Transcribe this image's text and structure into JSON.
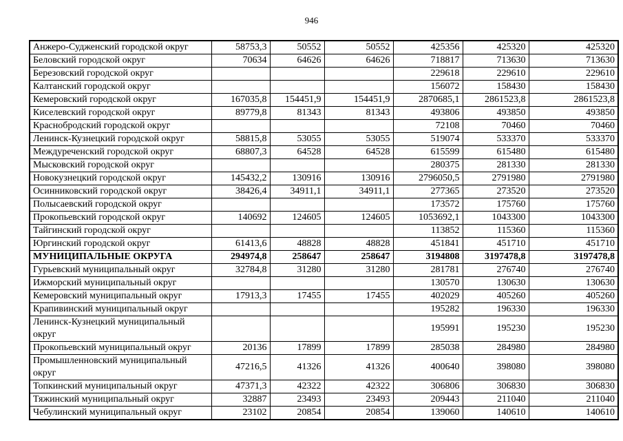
{
  "page": {
    "number": "946"
  },
  "table": {
    "rows": [
      {
        "label": "Анжеро-Судженский городской округ",
        "bold": false,
        "values": [
          "58753,3",
          "50552",
          "50552",
          "425356",
          "425320",
          "425320"
        ]
      },
      {
        "label": "Беловский городской округ",
        "bold": false,
        "values": [
          "70634",
          "64626",
          "64626",
          "718817",
          "713630",
          "713630"
        ]
      },
      {
        "label": "Березовский городской округ",
        "bold": false,
        "values": [
          "",
          "",
          "",
          "229618",
          "229610",
          "229610"
        ]
      },
      {
        "label": "Калтанский городской округ",
        "bold": false,
        "values": [
          "",
          "",
          "",
          "156072",
          "158430",
          "158430"
        ]
      },
      {
        "label": "Кемеровский городской округ",
        "bold": false,
        "values": [
          "167035,8",
          "154451,9",
          "154451,9",
          "2870685,1",
          "2861523,8",
          "2861523,8"
        ]
      },
      {
        "label": "Киселевский городской округ",
        "bold": false,
        "values": [
          "89779,8",
          "81343",
          "81343",
          "493806",
          "493850",
          "493850"
        ]
      },
      {
        "label": "Краснобродский городской округ",
        "bold": false,
        "values": [
          "",
          "",
          "",
          "72108",
          "70460",
          "70460"
        ]
      },
      {
        "label": "Ленинск-Кузнецкий городской округ",
        "bold": false,
        "values": [
          "58815,8",
          "53055",
          "53055",
          "519074",
          "533370",
          "533370"
        ]
      },
      {
        "label": "Междуреченский городской округ",
        "bold": false,
        "values": [
          "68807,3",
          "64528",
          "64528",
          "615599",
          "615480",
          "615480"
        ]
      },
      {
        "label": "Мысковский городской округ",
        "bold": false,
        "values": [
          "",
          "",
          "",
          "280375",
          "281330",
          "281330"
        ]
      },
      {
        "label": "Новокузнецкий городской округ",
        "bold": false,
        "values": [
          "145432,2",
          "130916",
          "130916",
          "2796050,5",
          "2791980",
          "2791980"
        ]
      },
      {
        "label": "Осинниковский городской округ",
        "bold": false,
        "values": [
          "38426,4",
          "34911,1",
          "34911,1",
          "277365",
          "273520",
          "273520"
        ]
      },
      {
        "label": "Полысаевский городской округ",
        "bold": false,
        "values": [
          "",
          "",
          "",
          "173572",
          "175760",
          "175760"
        ]
      },
      {
        "label": "Прокопьевский городской округ",
        "bold": false,
        "values": [
          "140692",
          "124605",
          "124605",
          "1053692,1",
          "1043300",
          "1043300"
        ]
      },
      {
        "label": "Тайгинский городской округ",
        "bold": false,
        "values": [
          "",
          "",
          "",
          "113852",
          "115360",
          "115360"
        ]
      },
      {
        "label": "Юргинский городской округ",
        "bold": false,
        "values": [
          "61413,6",
          "48828",
          "48828",
          "451841",
          "451710",
          "451710"
        ]
      },
      {
        "label": "МУНИЦИПАЛЬНЫЕ ОКРУГА",
        "bold": true,
        "values": [
          "294974,8",
          "258647",
          "258647",
          "3194808",
          "3197478,8",
          "3197478,8"
        ]
      },
      {
        "label": "Гурьевский муниципальный округ",
        "bold": false,
        "values": [
          "32784,8",
          "31280",
          "31280",
          "281781",
          "276740",
          "276740"
        ]
      },
      {
        "label": "Ижморский муниципальный округ",
        "bold": false,
        "values": [
          "",
          "",
          "",
          "130570",
          "130630",
          "130630"
        ]
      },
      {
        "label": "Кемеровский муниципальный округ",
        "bold": false,
        "values": [
          "17913,3",
          "17455",
          "17455",
          "402029",
          "405260",
          "405260"
        ]
      },
      {
        "label": "Крапивинский муниципальный округ",
        "bold": false,
        "values": [
          "",
          "",
          "",
          "195282",
          "196330",
          "196330"
        ]
      },
      {
        "label": "Ленинск-Кузнецкий муниципальный\nокруг",
        "bold": false,
        "values": [
          "",
          "",
          "",
          "195991",
          "195230",
          "195230"
        ]
      },
      {
        "label": "Прокопьевский муниципальный округ",
        "bold": false,
        "values": [
          "20136",
          "17899",
          "17899",
          "285038",
          "284980",
          "284980"
        ]
      },
      {
        "label": "Промышленновский муниципальный\nокруг",
        "bold": false,
        "values": [
          "47216,5",
          "41326",
          "41326",
          "400640",
          "398080",
          "398080"
        ]
      },
      {
        "label": "Топкинский муниципальный округ",
        "bold": false,
        "values": [
          "47371,3",
          "42322",
          "42322",
          "306806",
          "306830",
          "306830"
        ]
      },
      {
        "label": "Тяжинский муниципальный округ",
        "bold": false,
        "values": [
          "32887",
          "23493",
          "23493",
          "209443",
          "211040",
          "211040"
        ]
      },
      {
        "label": "Чебулинский муниципальный округ",
        "bold": false,
        "values": [
          "23102",
          "20854",
          "20854",
          "139060",
          "140610",
          "140610"
        ]
      }
    ]
  }
}
